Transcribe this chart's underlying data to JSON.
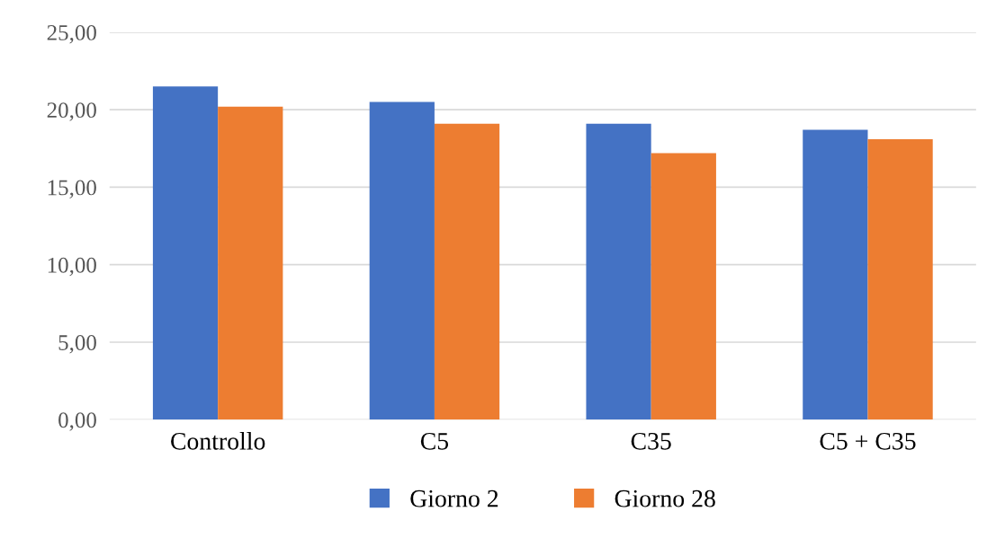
{
  "chart_data": {
    "type": "bar",
    "categories": [
      "Controllo",
      "C5",
      "C35",
      "C5 + C35"
    ],
    "series": [
      {
        "name": "Giorno 2",
        "color": "#4472c4",
        "values": [
          21.5,
          20.5,
          19.1,
          18.7
        ]
      },
      {
        "name": "Giorno 28",
        "color": "#ed7d31",
        "values": [
          20.2,
          19.1,
          17.2,
          18.1
        ]
      }
    ],
    "ylim": [
      0,
      25
    ],
    "yticks": [
      {
        "value": 0,
        "label": "0,00"
      },
      {
        "value": 5,
        "label": "5,00"
      },
      {
        "value": 10,
        "label": "10,00"
      },
      {
        "value": 15,
        "label": "15,00"
      },
      {
        "value": 20,
        "label": "20,00"
      },
      {
        "value": 25,
        "label": "25,00"
      }
    ],
    "grid": "y",
    "legend": "bottom"
  }
}
